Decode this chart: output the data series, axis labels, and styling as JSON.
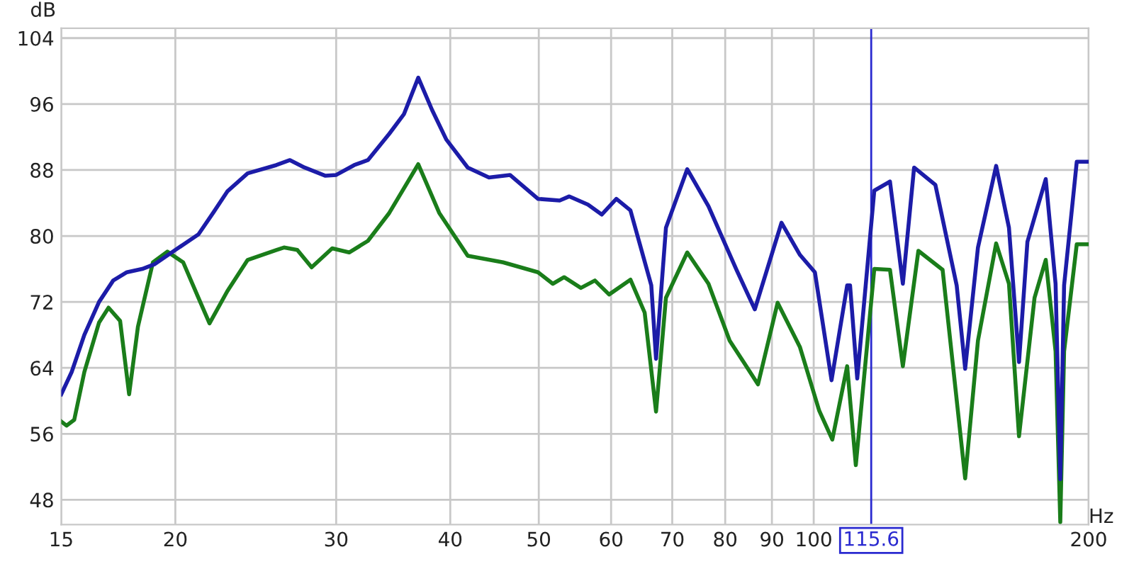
{
  "chart_data": {
    "type": "line",
    "xlabel": "Hz",
    "ylabel": "dB",
    "log": "x",
    "xlim": [
      15,
      200
    ],
    "xticks": [
      15,
      20,
      30,
      40,
      50,
      60,
      70,
      80,
      90,
      100,
      200
    ],
    "ylim": [
      45,
      105.2
    ],
    "yticks": [
      48,
      56,
      64,
      72,
      80,
      88,
      96,
      104
    ],
    "grid": true,
    "ref_lines": [
      {
        "axis": "x",
        "value": 115.6,
        "label": "115.6",
        "color": "#2a2ad0"
      }
    ],
    "series": [
      {
        "color": "#1c1ca8",
        "x": [
          15,
          15.4,
          15.9,
          16.5,
          17.1,
          17.7,
          18.4,
          19.0,
          20,
          21.2,
          22.0,
          22.8,
          24.0,
          25.8,
          26.7,
          27.7,
          29.2,
          30,
          31.4,
          32.5,
          34.3,
          35.6,
          36.9,
          38.2,
          39.6,
          41.8,
          44.1,
          46.5,
          49.9,
          52.7,
          54.0,
          56.6,
          58.6,
          60.8,
          63.0,
          66.4,
          67.2,
          68.9,
          72.7,
          76.7,
          82.3,
          86.2,
          92.2,
          96.6,
          100.3,
          104.6,
          108.8,
          109.6,
          111.6,
          116.5,
          121.2,
          125.2,
          128.8,
          135.9,
          143.4,
          146.5,
          151.3,
          158.4,
          163.6,
          167.8,
          171.4,
          179.5,
          184.0,
          186.2,
          188.0,
          194.1,
          200
        ],
        "values": [
          60.8,
          63.5,
          68,
          72,
          74.6,
          75.6,
          76,
          76.6,
          78.3,
          80.2,
          82.8,
          85.4,
          87.6,
          88.6,
          89.2,
          88.3,
          87.3,
          87.4,
          88.6,
          89.2,
          92.4,
          94.8,
          99.2,
          95.3,
          91.7,
          88.3,
          87.1,
          87.4,
          84.5,
          84.3,
          84.8,
          83.8,
          82.6,
          84.5,
          83.1,
          74,
          65.1,
          81,
          88.1,
          83.6,
          75.9,
          71.1,
          81.6,
          77.7,
          75.6,
          62.5,
          74,
          74,
          62.7,
          85.5,
          86.6,
          74.2,
          88.3,
          86.2,
          74,
          63.9,
          78.6,
          88.5,
          81,
          64.7,
          79.3,
          86.9,
          74.2,
          50.5,
          74,
          89,
          89
        ]
      },
      {
        "color": "#1a7d1a",
        "x": [
          15,
          15.2,
          15.5,
          15.9,
          16.5,
          16.9,
          17.4,
          17.8,
          18.2,
          18.9,
          19.6,
          20.4,
          21.2,
          21.8,
          22.8,
          24.0,
          25.8,
          26.3,
          27.2,
          28.2,
          29.7,
          31.0,
          32.5,
          34.3,
          36.9,
          38.9,
          41.8,
          45.7,
          49.9,
          51.8,
          53.3,
          55.6,
          57.6,
          59.7,
          63.0,
          65.3,
          67.2,
          68.9,
          72.7,
          76.7,
          80.9,
          83.8,
          86.9,
          91.3,
          96.6,
          101.4,
          104.8,
          108.8,
          111.2,
          116.5,
          121.2,
          125.2,
          130.2,
          138.4,
          146.5,
          151.3,
          158.4,
          163.6,
          167.8,
          174.5,
          179.5,
          184.0,
          186.2,
          188.0,
          194.1,
          200
        ],
        "values": [
          57.5,
          57,
          57.7,
          63.5,
          69.5,
          71.3,
          69.7,
          60.8,
          69,
          76.8,
          78.1,
          76.8,
          72.5,
          69.4,
          73.3,
          77.1,
          78.3,
          78.6,
          78.3,
          76.2,
          78.5,
          78,
          79.4,
          82.8,
          88.7,
          82.8,
          77.6,
          76.8,
          75.6,
          74.2,
          75,
          73.7,
          74.6,
          72.9,
          74.7,
          70.7,
          58.7,
          72.5,
          78,
          74.2,
          67.3,
          64.7,
          62,
          71.9,
          66.5,
          58.8,
          55.3,
          64.2,
          52.2,
          76,
          75.9,
          64.2,
          78.2,
          75.9,
          50.6,
          67.3,
          79.1,
          74.2,
          55.7,
          72.5,
          77.1,
          66,
          45.3,
          66,
          79,
          79
        ]
      }
    ]
  }
}
